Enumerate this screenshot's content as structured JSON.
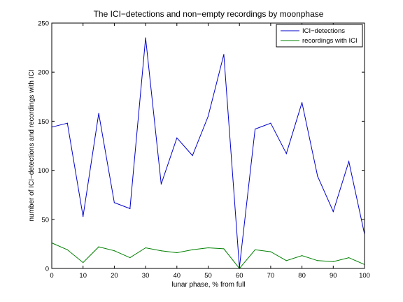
{
  "chart_data": {
    "type": "line",
    "title": "The ICI−detections and non−empty recordings by moonphase",
    "xlabel": "lunar phase, % from full",
    "ylabel": "number of ICI−detections and recordings with ICI",
    "xlim": [
      0,
      100
    ],
    "ylim": [
      0,
      250
    ],
    "x_ticks": [
      0,
      10,
      20,
      30,
      40,
      50,
      60,
      70,
      80,
      90,
      100
    ],
    "y_ticks": [
      0,
      50,
      100,
      150,
      200,
      250
    ],
    "grid": false,
    "legend_position": "top-right",
    "x": [
      0,
      5,
      10,
      15,
      20,
      25,
      30,
      35,
      40,
      45,
      50,
      55,
      60,
      65,
      70,
      75,
      80,
      85,
      90,
      95,
      100
    ],
    "series": [
      {
        "name": "ICI−detections",
        "color": "#0000cc",
        "values": [
          144,
          148,
          53,
          158,
          67,
          61,
          235,
          86,
          133,
          115,
          155,
          218,
          1,
          142,
          148,
          117,
          169,
          94,
          58,
          109,
          35
        ]
      },
      {
        "name": "recordings with ICI",
        "color": "#008000",
        "values": [
          26,
          19,
          6,
          22,
          18,
          11,
          21,
          18,
          16,
          19,
          21,
          20,
          0,
          19,
          17,
          8,
          13,
          8,
          7,
          11,
          4
        ]
      }
    ]
  }
}
